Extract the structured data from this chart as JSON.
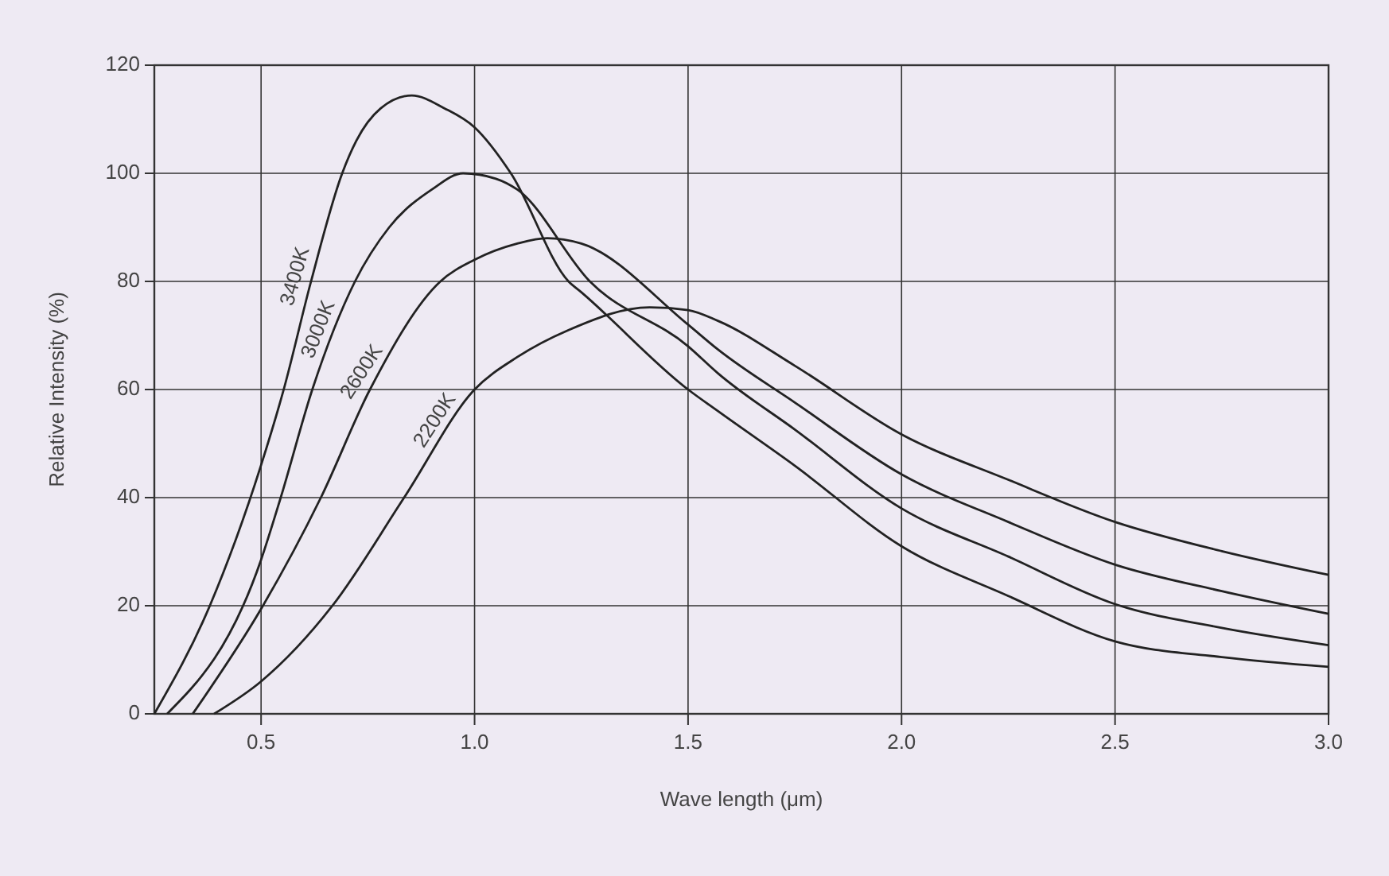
{
  "chart_data": {
    "type": "line",
    "xlabel": "Wave length (μm)",
    "ylabel": "Relative Intensity (%)",
    "xlim": [
      0.25,
      3.0
    ],
    "ylim": [
      0,
      120
    ],
    "xticks": [
      0.5,
      {
        "value": 1.0,
        "label": "1.0"
      },
      1.5,
      {
        "value": 2.0,
        "label": "2.0"
      },
      2.5,
      {
        "value": 3.0,
        "label": "3.0"
      }
    ],
    "yticks": [
      0,
      20,
      40,
      60,
      80,
      100,
      120
    ],
    "grid": true,
    "marker": "none",
    "line_style": "solid",
    "series": [
      {
        "name": "3400K",
        "color": "#222222",
        "x": [
          0.25,
          0.38,
          0.5,
          0.553,
          0.617,
          0.69,
          0.723,
          0.78,
          0.853,
          0.93,
          1.0,
          1.085,
          1.22,
          1.25,
          1.5,
          1.57,
          1.75,
          2.0,
          2.25,
          2.5,
          2.75,
          3.0
        ],
        "values": [
          0,
          20,
          46,
          60,
          80,
          100,
          106,
          112,
          114.4,
          112,
          108.5,
          100,
          80,
          78,
          60,
          56,
          45.9,
          31,
          21.8,
          13.4,
          10.5,
          8.7
        ]
      },
      {
        "name": "3000K",
        "color": "#222222",
        "x": [
          0.28,
          0.5,
          0.546,
          0.62,
          0.72,
          0.8,
          0.9,
          0.973,
          1.05,
          1.1,
          1.27,
          1.5,
          1.57,
          1.75,
          2.0,
          2.25,
          2.5,
          2.75,
          3.0
        ],
        "values": [
          0,
          28.5,
          40,
          60,
          80,
          90,
          97,
          100,
          99,
          97,
          80,
          68,
          63,
          52.6,
          38,
          29.1,
          20.3,
          15.9,
          12.7
        ]
      },
      {
        "name": "2600K",
        "color": "#222222",
        "x": [
          0.34,
          0.5,
          0.64,
          0.755,
          0.92,
          1.0,
          1.1,
          1.17,
          1.25,
          1.5,
          1.57,
          1.75,
          2.0,
          2.25,
          2.5,
          2.75,
          3.0
        ],
        "values": [
          0,
          19.4,
          40,
          60,
          80,
          84,
          87,
          88,
          87,
          72,
          67.4,
          57.6,
          44.3,
          35.5,
          27.6,
          22.7,
          18.5
        ]
      },
      {
        "name": "2200K",
        "color": "#222222",
        "x": [
          0.39,
          0.5,
          0.667,
          0.835,
          1.0,
          1.1,
          1.22,
          1.41,
          1.5,
          1.57,
          1.75,
          2.0,
          2.25,
          2.5,
          2.75,
          3.0
        ],
        "values": [
          0,
          6,
          20,
          40,
          60,
          66,
          71,
          75.2,
          74.7,
          72.7,
          64.4,
          51.7,
          43.3,
          35.5,
          30.1,
          25.7
        ]
      }
    ]
  }
}
